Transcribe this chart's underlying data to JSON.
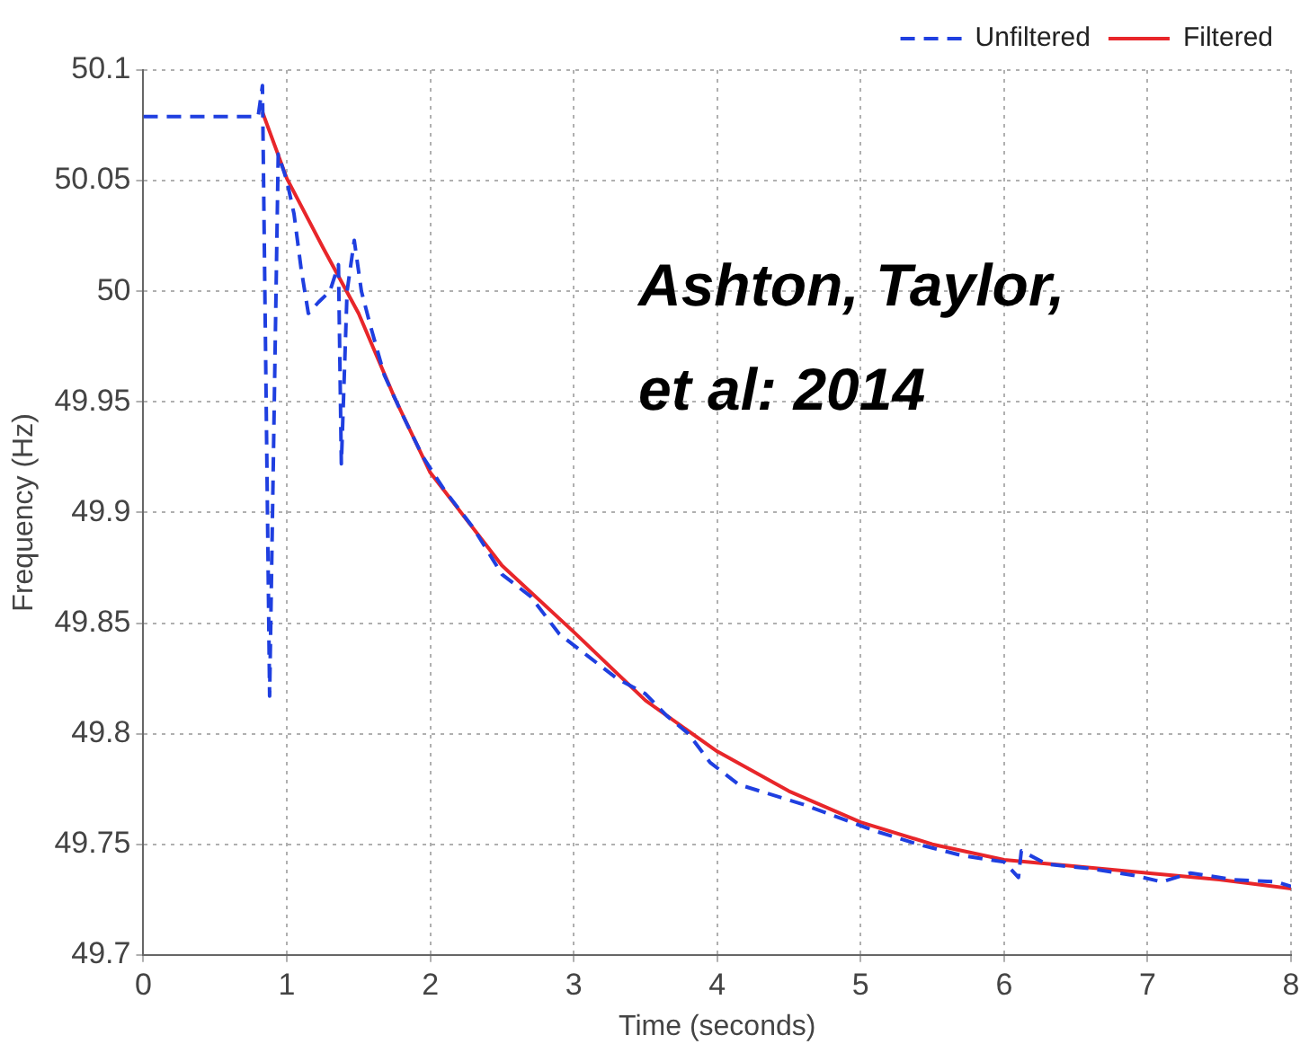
{
  "chart_data": {
    "type": "line",
    "xlabel": "Time (seconds)",
    "ylabel": "Frequency (Hz)",
    "xlim": [
      0,
      8
    ],
    "xticks": [
      0,
      1,
      2,
      3,
      4,
      5,
      6,
      7,
      8
    ],
    "ylim": [
      49.7,
      50.1
    ],
    "yticks": [
      49.7,
      49.75,
      49.8,
      49.85,
      49.9,
      49.95,
      50,
      50.05,
      50.1
    ],
    "grid": true,
    "legend": "top right",
    "marker": "none",
    "annotations": [
      "Ashton, Taylor, et al: 2014"
    ],
    "series": [
      {
        "name": "Unfiltered",
        "color": "#1f3fe0",
        "line_style": "dashed",
        "x": [
          0,
          0.8,
          0.83,
          0.88,
          0.94,
          1.0,
          1.05,
          1.1,
          1.15,
          1.22,
          1.3,
          1.36,
          1.38,
          1.42,
          1.47,
          1.52,
          1.58,
          1.68,
          1.8,
          1.95,
          2.1,
          2.3,
          2.5,
          2.7,
          2.9,
          3.1,
          3.3,
          3.5,
          3.65,
          3.8,
          3.95,
          4.15,
          4.35,
          4.6,
          4.85,
          5.1,
          5.4,
          5.7,
          6.0,
          6.1,
          6.12,
          6.3,
          6.6,
          6.9,
          7.1,
          7.3,
          7.6,
          7.9,
          8
        ],
        "values": [
          50.079,
          50.079,
          50.093,
          49.817,
          50.062,
          50.05,
          50.035,
          50.01,
          49.99,
          49.995,
          50.0,
          50.012,
          49.922,
          50.0,
          50.023,
          50.0,
          49.985,
          49.962,
          49.945,
          49.925,
          49.91,
          49.893,
          49.872,
          49.862,
          49.845,
          49.835,
          49.825,
          49.818,
          49.808,
          49.8,
          49.787,
          49.777,
          49.773,
          49.768,
          49.762,
          49.756,
          49.75,
          49.745,
          49.742,
          49.735,
          49.747,
          49.741,
          49.739,
          49.736,
          49.733,
          49.737,
          49.734,
          49.733,
          49.731
        ]
      },
      {
        "name": "Filtered",
        "color": "#e8262a",
        "line_style": "solid",
        "x": [
          0.83,
          1.0,
          1.25,
          1.5,
          1.75,
          2,
          2.5,
          3,
          3.5,
          4,
          4.5,
          5,
          5.5,
          6,
          6.5,
          7,
          7.5,
          8
        ],
        "values": [
          50.081,
          50.051,
          50.02,
          49.99,
          49.952,
          49.918,
          49.876,
          49.846,
          49.815,
          49.792,
          49.774,
          49.76,
          49.75,
          49.743,
          49.74,
          49.737,
          49.734,
          49.73
        ]
      }
    ]
  }
}
